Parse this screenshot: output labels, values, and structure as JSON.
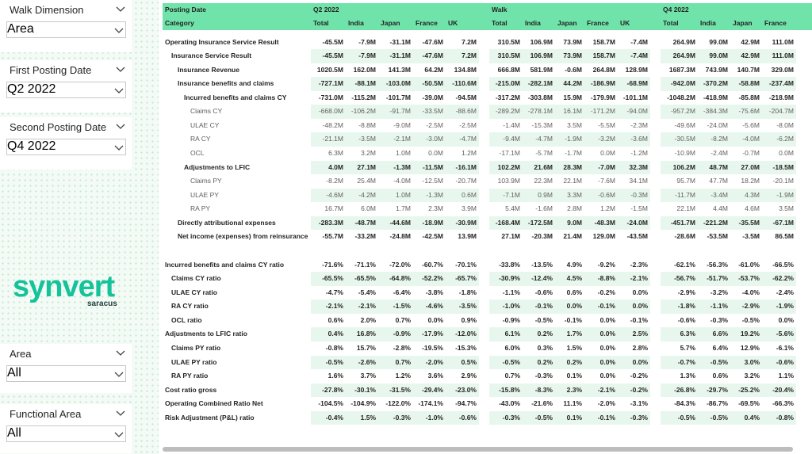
{
  "slicers": [
    {
      "title": "Walk Dimension",
      "value": "Area"
    },
    {
      "title": "First Posting Date",
      "value": "Q2 2022"
    },
    {
      "title": "Second Posting Date",
      "value": "Q4 2022"
    },
    {
      "title": "Area",
      "value": "All"
    },
    {
      "title": "Functional Area",
      "value": "All"
    }
  ],
  "logo": {
    "name": "synvert",
    "sub": "saracus"
  },
  "table": {
    "header": {
      "posting_date": "Posting Date",
      "category": "Category",
      "groups": [
        {
          "name": "Q2 2022",
          "columns": [
            "Total",
            "India",
            "Japan",
            "France",
            "UK"
          ]
        },
        {
          "name": "Walk",
          "columns": [
            "Total",
            "India",
            "Japan",
            "France",
            "UK"
          ]
        },
        {
          "name": "Q4 2022",
          "columns": [
            "Total",
            "India",
            "Japan",
            "France"
          ]
        }
      ]
    },
    "rows": [
      {
        "label": "Operating Insurance Service Result",
        "values": [
          [
            "-45.5M",
            "-7.9M",
            "-31.1M",
            "-47.6M",
            "7.2M"
          ],
          [
            "310.5M",
            "106.9M",
            "73.9M",
            "158.7M",
            "-7.4M"
          ],
          [
            "264.9M",
            "99.0M",
            "42.9M",
            "111.0M"
          ]
        ]
      },
      {
        "label": "Insurance Service Result",
        "values": [
          [
            "-45.5M",
            "-7.9M",
            "-31.1M",
            "-47.6M",
            "7.2M"
          ],
          [
            "310.5M",
            "106.9M",
            "73.9M",
            "158.7M",
            "-7.4M"
          ],
          [
            "264.9M",
            "99.0M",
            "42.9M",
            "111.0M"
          ]
        ]
      },
      {
        "label": "Insurance Revenue",
        "values": [
          [
            "1020.5M",
            "162.0M",
            "141.3M",
            "64.2M",
            "134.8M"
          ],
          [
            "666.8M",
            "581.9M",
            "-0.6M",
            "264.8M",
            "128.9M"
          ],
          [
            "1687.3M",
            "743.9M",
            "140.7M",
            "329.0M"
          ]
        ]
      },
      {
        "label": "Insurance benefits and claims",
        "values": [
          [
            "-727.1M",
            "-88.1M",
            "-103.0M",
            "-50.5M",
            "-110.6M"
          ],
          [
            "-215.0M",
            "-282.1M",
            "44.2M",
            "-186.9M",
            "-68.9M"
          ],
          [
            "-942.0M",
            "-370.2M",
            "-58.8M",
            "-237.4M"
          ]
        ]
      },
      {
        "label": "Incurred benefits and claims CY",
        "values": [
          [
            "-731.0M",
            "-115.2M",
            "-101.7M",
            "-39.0M",
            "-94.5M"
          ],
          [
            "-317.2M",
            "-303.8M",
            "15.9M",
            "-179.9M",
            "-101.1M"
          ],
          [
            "-1048.2M",
            "-418.9M",
            "-85.8M",
            "-218.9M"
          ]
        ]
      },
      {
        "label": "Claims CY",
        "values": [
          [
            "-668.0M",
            "-106.2M",
            "-91.7M",
            "-33.5M",
            "-88.6M"
          ],
          [
            "-289.2M",
            "-278.1M",
            "16.1M",
            "-171.2M",
            "-94.0M"
          ],
          [
            "-957.2M",
            "-384.3M",
            "-75.6M",
            "-204.7M"
          ]
        ]
      },
      {
        "label": "ULAE CY",
        "values": [
          [
            "-48.2M",
            "-8.8M",
            "-9.0M",
            "-2.5M",
            "-2.5M"
          ],
          [
            "-1.4M",
            "-15.3M",
            "3.5M",
            "-5.5M",
            "-2.3M"
          ],
          [
            "-49.6M",
            "-24.0M",
            "-5.6M",
            "-8.0M"
          ]
        ]
      },
      {
        "label": "RA CY",
        "values": [
          [
            "-21.1M",
            "-3.5M",
            "-2.1M",
            "-3.0M",
            "-4.7M"
          ],
          [
            "-9.4M",
            "-4.7M",
            "-1.9M",
            "-3.2M",
            "-3.6M"
          ],
          [
            "-30.5M",
            "-8.2M",
            "-4.0M",
            "-6.2M"
          ]
        ]
      },
      {
        "label": "OCL",
        "values": [
          [
            "6.3M",
            "3.2M",
            "1.0M",
            "0.0M",
            "1.2M"
          ],
          [
            "-17.1M",
            "-5.7M",
            "-1.7M",
            "0.0M",
            "-1.2M"
          ],
          [
            "-10.9M",
            "-2.4M",
            "-0.7M",
            "0.0M"
          ]
        ]
      },
      {
        "label": "Adjustments to LFIC",
        "values": [
          [
            "4.0M",
            "27.1M",
            "-1.3M",
            "-11.5M",
            "-16.1M"
          ],
          [
            "102.2M",
            "21.6M",
            "28.3M",
            "-7.0M",
            "32.3M"
          ],
          [
            "106.2M",
            "48.7M",
            "27.0M",
            "-18.5M"
          ]
        ]
      },
      {
        "label": "Claims PY",
        "values": [
          [
            "-8.2M",
            "25.4M",
            "-4.0M",
            "-12.5M",
            "-20.7M"
          ],
          [
            "103.9M",
            "22.3M",
            "22.1M",
            "-7.6M",
            "34.1M"
          ],
          [
            "95.7M",
            "47.7M",
            "18.2M",
            "-20.1M"
          ]
        ]
      },
      {
        "label": "ULAE PY",
        "values": [
          [
            "-4.6M",
            "-4.2M",
            "1.0M",
            "-1.3M",
            "0.6M"
          ],
          [
            "-7.1M",
            "0.9M",
            "3.3M",
            "-0.6M",
            "-0.3M"
          ],
          [
            "-11.7M",
            "-3.4M",
            "4.3M",
            "-1.9M"
          ]
        ]
      },
      {
        "label": "RA PY",
        "values": [
          [
            "16.7M",
            "6.0M",
            "1.7M",
            "2.3M",
            "3.9M"
          ],
          [
            "5.4M",
            "-1.6M",
            "2.8M",
            "1.2M",
            "-1.5M"
          ],
          [
            "22.1M",
            "4.4M",
            "4.6M",
            "3.5M"
          ]
        ]
      },
      {
        "label": "Directly attributional expenses",
        "values": [
          [
            "-283.3M",
            "-48.7M",
            "-44.6M",
            "-18.9M",
            "-30.9M"
          ],
          [
            "-168.4M",
            "-172.5M",
            "9.0M",
            "-48.3M",
            "-24.0M"
          ],
          [
            "-451.7M",
            "-221.2M",
            "-35.5M",
            "-67.1M"
          ]
        ]
      },
      {
        "label": "Net income (expenses) from reinsurance",
        "values": [
          [
            "-55.7M",
            "-33.2M",
            "-24.8M",
            "-42.5M",
            "13.9M"
          ],
          [
            "27.1M",
            "-20.3M",
            "21.4M",
            "129.0M",
            "-43.5M"
          ],
          [
            "-28.6M",
            "-53.5M",
            "-3.5M",
            "86.5M"
          ]
        ]
      },
      {
        "label": "Incurred benefits and claims CY ratio",
        "values": [
          [
            "-71.6%",
            "-71.1%",
            "-72.0%",
            "-60.7%",
            "-70.1%"
          ],
          [
            "-33.8%",
            "-13.5%",
            "4.9%",
            "-9.2%",
            "-2.3%"
          ],
          [
            "-62.1%",
            "-56.3%",
            "-61.0%",
            "-66.5%"
          ]
        ]
      },
      {
        "label": "Claims CY ratio",
        "values": [
          [
            "-65.5%",
            "-65.5%",
            "-64.8%",
            "-52.2%",
            "-65.7%"
          ],
          [
            "-30.9%",
            "-12.4%",
            "4.5%",
            "-8.8%",
            "-2.1%"
          ],
          [
            "-56.7%",
            "-51.7%",
            "-53.7%",
            "-62.2%"
          ]
        ]
      },
      {
        "label": "ULAE CY ratio",
        "values": [
          [
            "-4.7%",
            "-5.4%",
            "-6.4%",
            "-3.8%",
            "-1.8%"
          ],
          [
            "-1.1%",
            "-0.6%",
            "0.6%",
            "-0.2%",
            "0.0%"
          ],
          [
            "-2.9%",
            "-3.2%",
            "-4.0%",
            "-2.4%"
          ]
        ]
      },
      {
        "label": "RA CY ratio",
        "values": [
          [
            "-2.1%",
            "-2.1%",
            "-1.5%",
            "-4.6%",
            "-3.5%"
          ],
          [
            "-1.0%",
            "-0.1%",
            "0.0%",
            "-0.1%",
            "0.0%"
          ],
          [
            "-1.8%",
            "-1.1%",
            "-2.9%",
            "-1.9%"
          ]
        ]
      },
      {
        "label": "OCL ratio",
        "values": [
          [
            "0.6%",
            "2.0%",
            "0.7%",
            "0.0%",
            "0.9%"
          ],
          [
            "-0.9%",
            "-0.5%",
            "-0.1%",
            "0.0%",
            "-0.1%"
          ],
          [
            "-0.6%",
            "-0.3%",
            "-0.5%",
            "0.0%"
          ]
        ]
      },
      {
        "label": "Adjustments to LFIC ratio",
        "values": [
          [
            "0.4%",
            "16.8%",
            "-0.9%",
            "-17.9%",
            "-12.0%"
          ],
          [
            "6.1%",
            "0.2%",
            "1.7%",
            "0.0%",
            "2.5%"
          ],
          [
            "6.3%",
            "6.6%",
            "19.2%",
            "-5.6%"
          ]
        ]
      },
      {
        "label": "Claims PY ratio",
        "values": [
          [
            "-0.8%",
            "15.7%",
            "-2.8%",
            "-19.5%",
            "-15.3%"
          ],
          [
            "6.0%",
            "0.3%",
            "1.5%",
            "0.0%",
            "2.8%"
          ],
          [
            "5.7%",
            "6.4%",
            "12.9%",
            "-6.1%"
          ]
        ]
      },
      {
        "label": "ULAE PY ratio",
        "values": [
          [
            "-0.5%",
            "-2.6%",
            "0.7%",
            "-2.0%",
            "0.5%"
          ],
          [
            "-0.5%",
            "0.2%",
            "0.2%",
            "0.0%",
            "0.0%"
          ],
          [
            "-0.7%",
            "-0.5%",
            "3.0%",
            "-0.6%"
          ]
        ]
      },
      {
        "label": "RA PY ratio",
        "values": [
          [
            "1.6%",
            "3.7%",
            "1.2%",
            "3.6%",
            "2.9%"
          ],
          [
            "0.7%",
            "-0.3%",
            "0.1%",
            "0.0%",
            "-0.2%"
          ],
          [
            "1.3%",
            "0.6%",
            "3.2%",
            "1.1%"
          ]
        ]
      },
      {
        "label": "Cost ratio gross",
        "values": [
          [
            "-27.8%",
            "-30.1%",
            "-31.5%",
            "-29.4%",
            "-23.0%"
          ],
          [
            "-15.8%",
            "-8.3%",
            "2.3%",
            "-2.1%",
            "-0.2%"
          ],
          [
            "-26.8%",
            "-29.7%",
            "-25.2%",
            "-20.4%"
          ]
        ]
      },
      {
        "label": "Operating Combined Ratio Net",
        "values": [
          [
            "-104.5%",
            "-104.9%",
            "-122.0%",
            "-174.1%",
            "-94.7%"
          ],
          [
            "-43.0%",
            "-21.6%",
            "11.1%",
            "-2.0%",
            "-3.1%"
          ],
          [
            "-84.3%",
            "-86.7%",
            "-69.5%",
            "-66.3%"
          ]
        ]
      },
      {
        "label": "Risk Adjustment (P&L) ratio",
        "values": [
          [
            "-0.4%",
            "1.5%",
            "-0.3%",
            "-1.0%",
            "-0.6%"
          ],
          [
            "-0.3%",
            "-0.5%",
            "0.1%",
            "-0.1%",
            "-0.3%"
          ],
          [
            "-0.5%",
            "-0.5%",
            "0.4%",
            "-0.8%"
          ]
        ]
      }
    ]
  }
}
